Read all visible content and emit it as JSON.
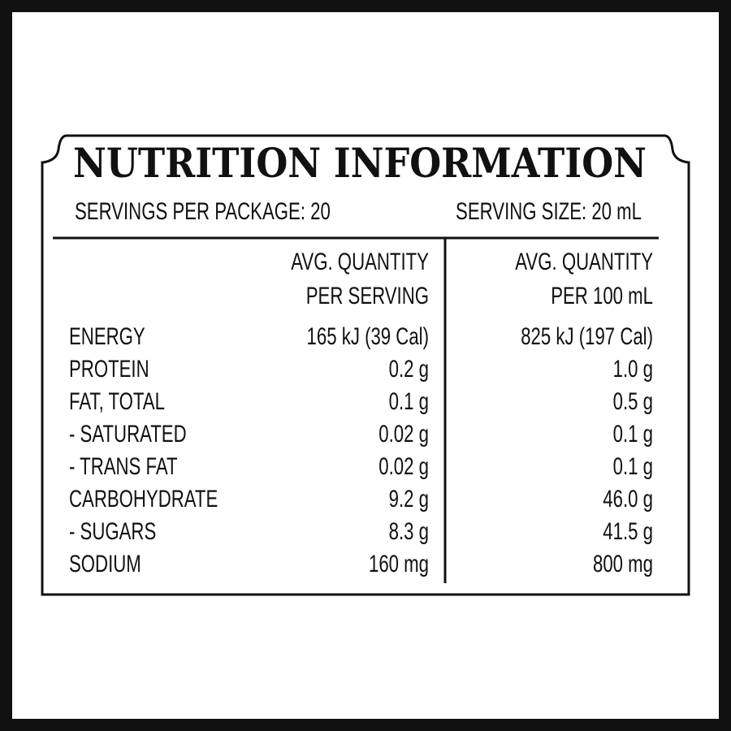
{
  "title": "NUTRITION INFORMATION",
  "servings_per_package": "SERVINGS PER PACKAGE: 20",
  "serving_size": "SERVING SIZE: 20 mL",
  "table": {
    "header": [
      [
        "AVG. QUANTITY",
        "PER SERVING"
      ],
      [
        "AVG. QUANTITY",
        "PER 100 mL"
      ]
    ],
    "rows": [
      [
        "ENERGY",
        "165 kJ (39 Cal)",
        "825 kJ (197 Cal)"
      ],
      [
        "PROTEIN",
        "0.2 g",
        "1.0 g"
      ],
      [
        "FAT, TOTAL",
        "0.1 g",
        "0.5 g"
      ],
      [
        "- SATURATED",
        "0.02 g",
        "0.1 g"
      ],
      [
        "- TRANS FAT",
        "0.02 g",
        "0.1 g"
      ],
      [
        "CARBOHYDRATE",
        "9.2 g",
        "46.0 g"
      ],
      [
        "- SUGARS",
        "8.3 g",
        "41.5 g"
      ],
      [
        "SODIUM",
        "160 mg",
        "800 mg"
      ]
    ]
  }
}
